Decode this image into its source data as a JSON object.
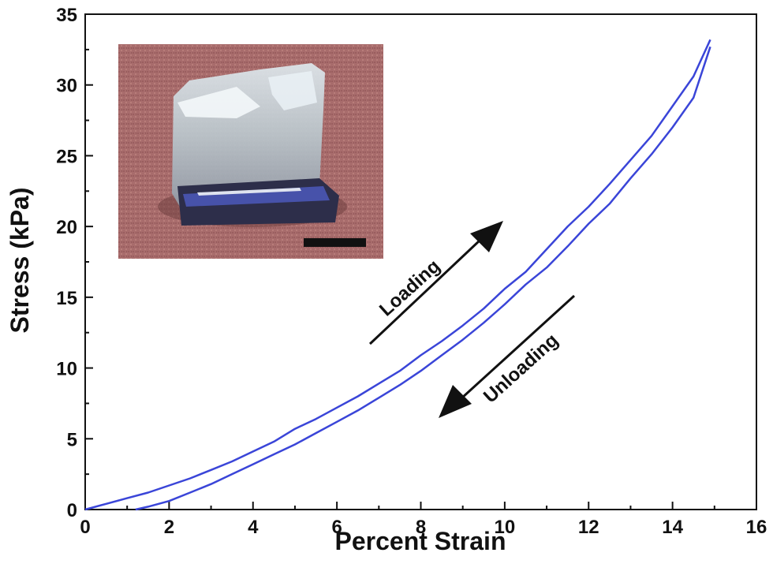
{
  "chart_data": {
    "type": "line",
    "title": "",
    "xlabel": "Percent Strain",
    "ylabel": "Stress (kPa)",
    "xlim": [
      0,
      16
    ],
    "ylim": [
      0,
      35
    ],
    "xticks": [
      0,
      2,
      4,
      6,
      8,
      10,
      12,
      14,
      16
    ],
    "yticks": [
      0,
      5,
      10,
      15,
      20,
      25,
      30,
      35
    ],
    "grid": false,
    "legend": "none",
    "series": [
      {
        "color": "#3a45d8",
        "x": [
          0,
          0.5,
          1,
          1.5,
          2,
          2.5,
          3,
          3.5,
          4,
          4.5,
          5,
          5.5,
          6,
          6.5,
          7,
          7.5,
          8,
          8.5,
          9,
          9.5,
          10,
          10.5,
          11,
          11.5,
          12,
          12.5,
          13,
          13.5,
          14,
          14.5,
          14.9
        ],
        "y": [
          0,
          0.4,
          0.8,
          1.2,
          1.7,
          2.2,
          2.8,
          3.4,
          4.1,
          4.8,
          5.7,
          6.4,
          7.2,
          8.0,
          8.9,
          9.8,
          10.9,
          11.9,
          13.0,
          14.2,
          15.6,
          16.8,
          18.4,
          20.0,
          21.4,
          23.0,
          24.7,
          26.4,
          28.5,
          30.6,
          33.2
        ]
      },
      {
        "color": "#3a45d8",
        "x": [
          1.2,
          1.5,
          2,
          2.5,
          3,
          3.5,
          4,
          4.5,
          5,
          5.5,
          6,
          6.5,
          7,
          7.5,
          8,
          8.5,
          9,
          9.5,
          10,
          10.5,
          11,
          11.5,
          12,
          12.5,
          13,
          13.5,
          14,
          14.5,
          14.9
        ],
        "y": [
          0,
          0.2,
          0.6,
          1.2,
          1.8,
          2.5,
          3.2,
          3.9,
          4.6,
          5.4,
          6.2,
          7.0,
          7.9,
          8.8,
          9.8,
          10.9,
          12.0,
          13.2,
          14.5,
          15.9,
          17.1,
          18.6,
          20.2,
          21.6,
          23.4,
          25.1,
          27.0,
          29.1,
          32.7
        ]
      }
    ],
    "annotations": [
      {
        "text": "Loading"
      },
      {
        "text": "Unloading"
      }
    ]
  },
  "inset": {
    "bg_color": "#a5696a",
    "scale_bar_color": "#111111"
  }
}
